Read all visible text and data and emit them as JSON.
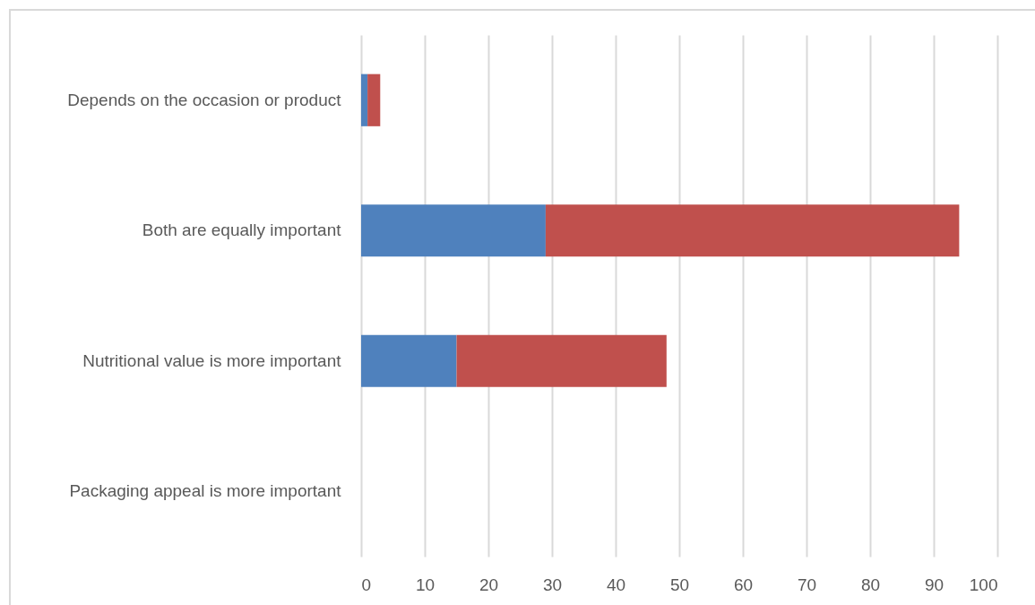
{
  "chart_data": {
    "type": "bar",
    "orientation": "horizontal",
    "stacked": true,
    "categories": [
      "Depends on the occasion or product",
      "Both are equally important",
      "Nutritional value is more important",
      "Packaging appeal is more important"
    ],
    "series": [
      {
        "color": "#4f81bd",
        "values": [
          1,
          29,
          15,
          0
        ]
      },
      {
        "color": "#c0504d",
        "values": [
          2,
          65,
          33,
          0
        ]
      }
    ],
    "xlim": [
      0,
      100
    ],
    "xticks": [
      0,
      10,
      20,
      30,
      40,
      50,
      60,
      70,
      80,
      90,
      100
    ],
    "grid": "x",
    "legend": false
  }
}
